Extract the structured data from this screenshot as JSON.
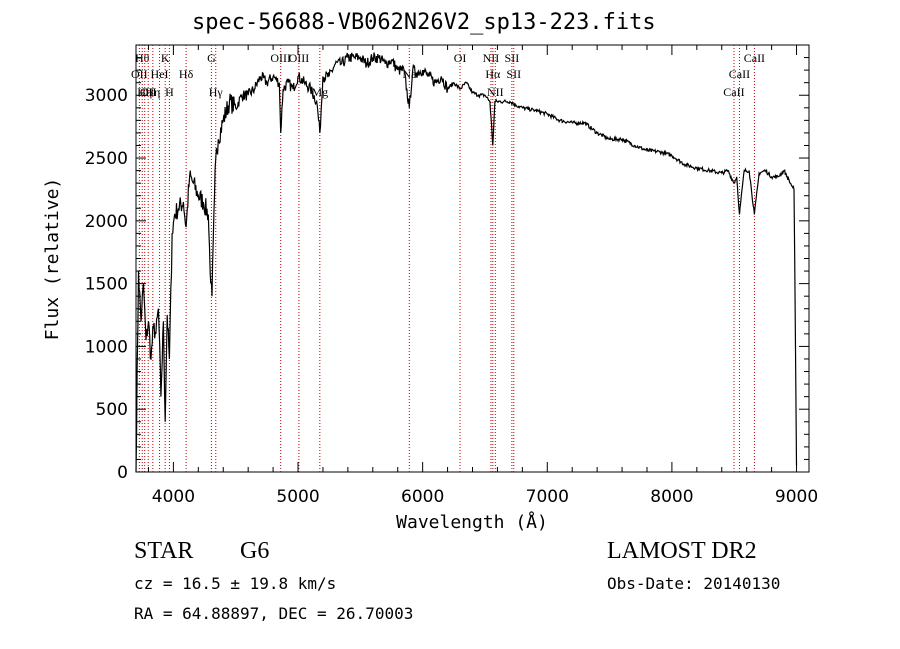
{
  "chart_data": {
    "type": "line",
    "title": "spec-56688-VB062N26V2_sp13-223.fits",
    "xlabel": "Wavelength (Å)",
    "ylabel": "Flux (relative)",
    "xlim": [
      3700,
      9100
    ],
    "ylim": [
      0,
      3400
    ],
    "xticks": [
      4000,
      5000,
      6000,
      7000,
      8000,
      9000
    ],
    "yticks": [
      0,
      500,
      1000,
      1500,
      2000,
      2500,
      3000
    ],
    "grid": false,
    "series": [
      {
        "color": "#000000",
        "x": [
          3700,
          3720,
          3740,
          3760,
          3780,
          3800,
          3820,
          3840,
          3860,
          3880,
          3900,
          3920,
          3934,
          3950,
          3968,
          3990,
          4010,
          4040,
          4080,
          4102,
          4130,
          4160,
          4200,
          4240,
          4280,
          4300,
          4310,
          4330,
          4340,
          4360,
          4400,
          4450,
          4500,
          4550,
          4600,
          4650,
          4700,
          4750,
          4800,
          4850,
          4861,
          4880,
          4920,
          4960,
          5000,
          5050,
          5100,
          5150,
          5175,
          5200,
          5250,
          5300,
          5350,
          5400,
          5450,
          5500,
          5550,
          5600,
          5650,
          5700,
          5750,
          5800,
          5850,
          5893,
          5920,
          5950,
          6000,
          6050,
          6100,
          6150,
          6200,
          6250,
          6300,
          6350,
          6400,
          6450,
          6500,
          6540,
          6563,
          6580,
          6600,
          6650,
          6700,
          6750,
          6800,
          6900,
          7000,
          7100,
          7200,
          7300,
          7400,
          7500,
          7600,
          7700,
          7800,
          7900,
          8000,
          8100,
          8200,
          8300,
          8400,
          8450,
          8498,
          8520,
          8542,
          8580,
          8620,
          8662,
          8700,
          8750,
          8800,
          8850,
          8900,
          8950,
          8980,
          9000
        ],
        "y": [
          0,
          1600,
          1200,
          1500,
          1050,
          1200,
          900,
          1150,
          1100,
          1300,
          600,
          1200,
          400,
          1250,
          900,
          1900,
          2050,
          2100,
          2150,
          1950,
          2350,
          2300,
          2200,
          2150,
          2050,
          1500,
          1400,
          2200,
          2500,
          2650,
          2800,
          2950,
          2900,
          3000,
          3000,
          3050,
          3150,
          3100,
          3150,
          3100,
          2700,
          3050,
          3100,
          3050,
          3150,
          3100,
          3050,
          2950,
          2700,
          3150,
          3150,
          3250,
          3250,
          3300,
          3300,
          3300,
          3250,
          3300,
          3300,
          3250,
          3280,
          3200,
          3200,
          2900,
          3200,
          3180,
          3200,
          3150,
          3100,
          3150,
          3050,
          3100,
          3050,
          3100,
          3020,
          3000,
          3000,
          2950,
          2600,
          2950,
          2950,
          2950,
          2950,
          2920,
          2900,
          2880,
          2850,
          2800,
          2780,
          2780,
          2700,
          2650,
          2650,
          2600,
          2560,
          2550,
          2520,
          2450,
          2420,
          2400,
          2380,
          2400,
          2300,
          2350,
          2050,
          2400,
          2400,
          2050,
          2380,
          2400,
          2350,
          2350,
          2400,
          2300,
          2250,
          50
        ]
      }
    ],
    "lines": [
      {
        "x": 3750,
        "label": "Hθ",
        "row": 1
      },
      {
        "x": 3727,
        "label": "OII",
        "row": 2
      },
      {
        "x": 3770,
        "label": "Hη",
        "row": 3
      },
      {
        "x": 3798,
        "label": "OII",
        "row": 3
      },
      {
        "x": 3835,
        "label": "Hη",
        "row": 3
      },
      {
        "x": 3889,
        "label": "HeI",
        "row": 2
      },
      {
        "x": 3934,
        "label": "K",
        "row": 1
      },
      {
        "x": 3968,
        "label": "H",
        "row": 3
      },
      {
        "x": 4102,
        "label": "Hδ",
        "row": 2
      },
      {
        "x": 4305,
        "label": "G",
        "row": 1
      },
      {
        "x": 4340,
        "label": "Hγ",
        "row": 3
      },
      {
        "x": 4861,
        "label": "OIII",
        "row": 1
      },
      {
        "x": 5007,
        "label": "OIII",
        "row": 1
      },
      {
        "x": 5175,
        "label": "Mg",
        "row": 3
      },
      {
        "x": 5893,
        "label": "Na",
        "row": 2
      },
      {
        "x": 6300,
        "label": "OI",
        "row": 1
      },
      {
        "x": 6548,
        "label": "NII",
        "row": 1
      },
      {
        "x": 6563,
        "label": "Hα",
        "row": 2
      },
      {
        "x": 6583,
        "label": "NII",
        "row": 3
      },
      {
        "x": 6716,
        "label": "SII",
        "row": 1
      },
      {
        "x": 6731,
        "label": "SII",
        "row": 2
      },
      {
        "x": 8498,
        "label": "CaII",
        "row": 3
      },
      {
        "x": 8542,
        "label": "CaII",
        "row": 2
      },
      {
        "x": 8662,
        "label": "CaII",
        "row": 1
      }
    ]
  },
  "info": {
    "class_label": "STAR",
    "subclass_label": "G6",
    "survey": "LAMOST DR2",
    "cz": "cz = 16.5 ± 19.8 km/s",
    "obs_date": "Obs-Date: 20140130",
    "radec": "RA =  64.88897, DEC =  26.70003"
  }
}
